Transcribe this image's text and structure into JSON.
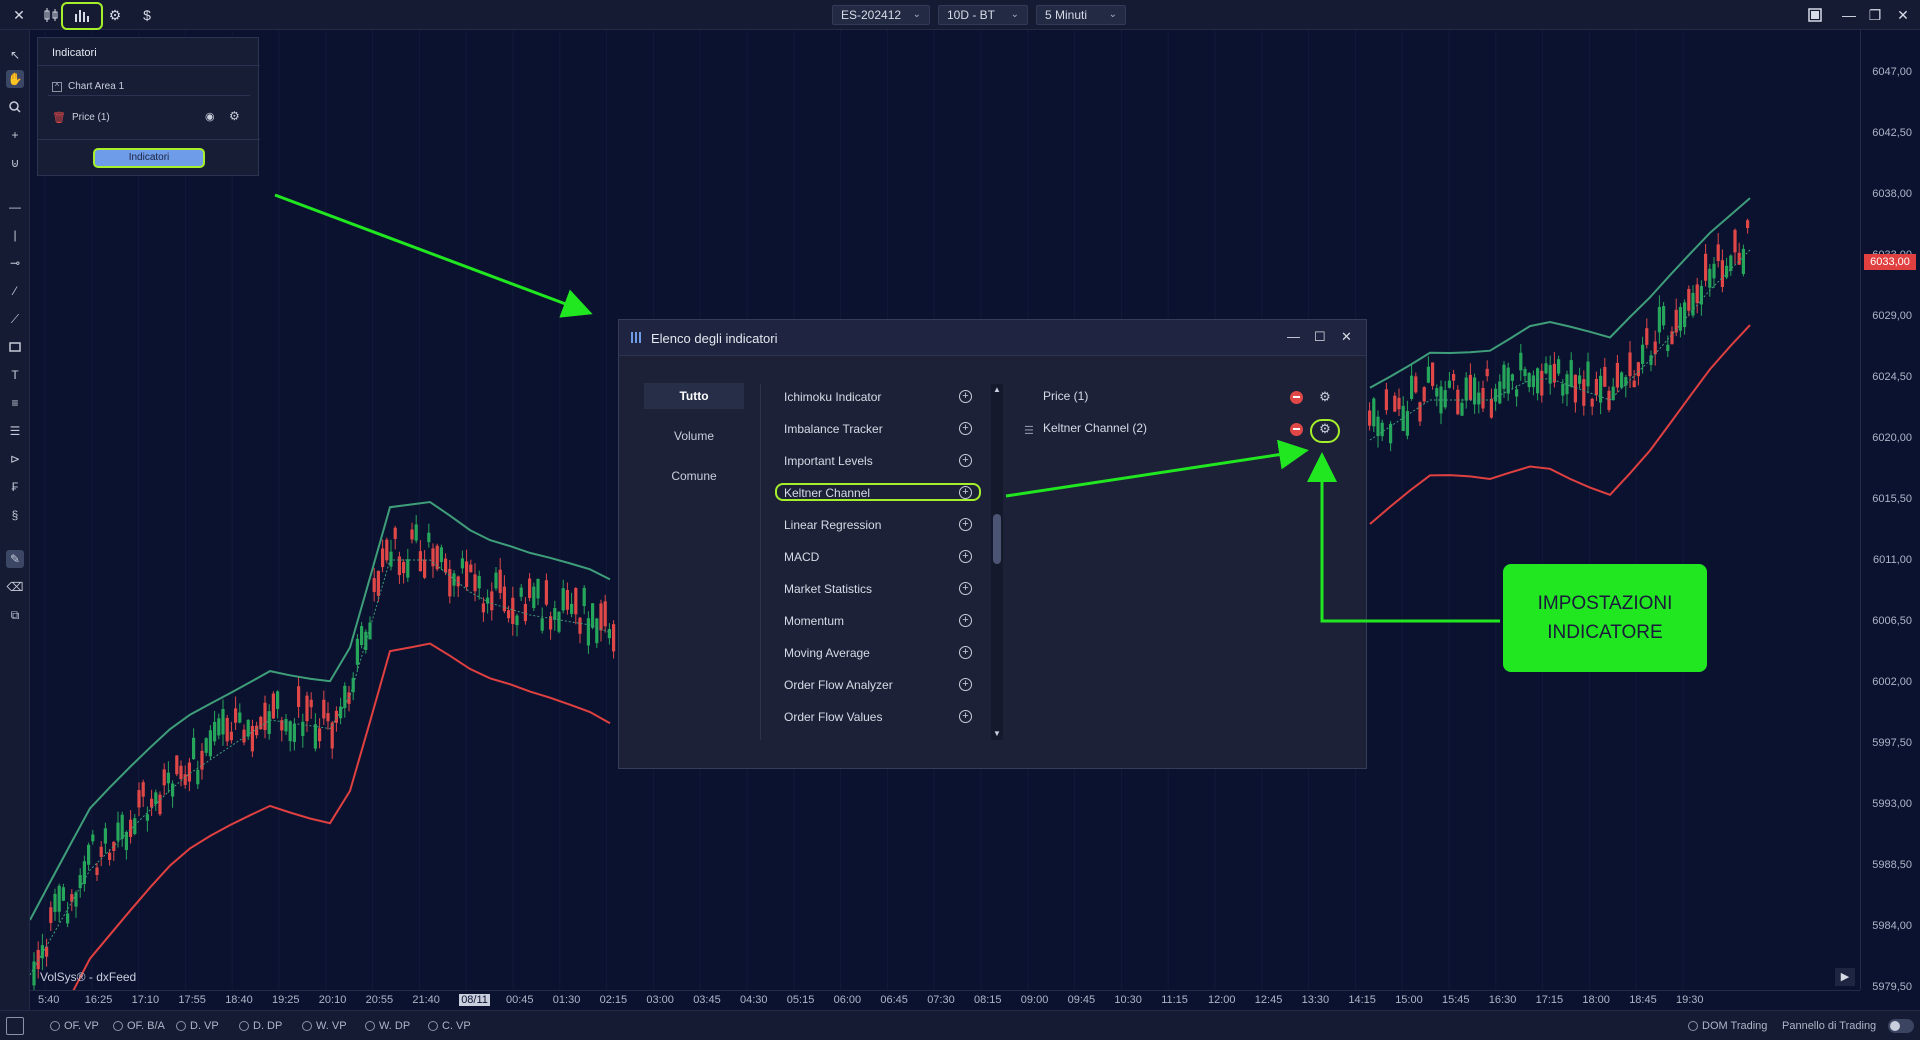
{
  "topbar": {
    "close_icon": "close-icon",
    "selects": [
      {
        "label": "ES-202412"
      },
      {
        "label": "10D - BT"
      },
      {
        "label": "5 Minuti"
      }
    ],
    "currency_label": "$"
  },
  "indicator_panel": {
    "title": "Indicatori",
    "chart_area": "Chart Area 1",
    "price_label": "Price (1)",
    "button_label": "Indicatori"
  },
  "dialog": {
    "title": "Elenco degli indicatori",
    "categories": [
      "Tutto",
      "Volume",
      "Comune"
    ],
    "list": [
      "Ichimoku Indicator",
      "Imbalance Tracker",
      "Important Levels",
      "Keltner Channel",
      "Linear Regression",
      "MACD",
      "Market Statistics",
      "Momentum",
      "Moving Average",
      "Order Flow Analyzer",
      "Order Flow Values"
    ],
    "selected": [
      "Price (1)",
      "Keltner Channel (2)"
    ]
  },
  "callout": {
    "line1": "IMPOSTAZIONI",
    "line2": "INDICATORE"
  },
  "yaxis": {
    "labels": [
      "6047,00",
      "6042,50",
      "6038,00",
      "6033,00",
      "6029,00",
      "6024,50",
      "6020,00",
      "6015,50",
      "6011,00",
      "6006,50",
      "6002,00",
      "5997,50",
      "5993,00",
      "5988,50",
      "5984,00",
      "5979,50"
    ],
    "current_price": "6033,00"
  },
  "xaxis": {
    "labels": [
      "5:40",
      "16:25",
      "17:10",
      "17:55",
      "18:40",
      "19:25",
      "20:10",
      "20:55",
      "21:40",
      "08/11",
      "00:45",
      "01:30",
      "02:15",
      "03:00",
      "03:45",
      "04:30",
      "05:15",
      "06:00",
      "06:45",
      "07:30",
      "08:15",
      "09:00",
      "09:45",
      "10:30",
      "11:15",
      "12:00",
      "12:45",
      "13:30",
      "14:15",
      "15:00",
      "15:45",
      "16:30",
      "17:15",
      "18:00",
      "18:45",
      "19:30"
    ]
  },
  "watermark": "VolSys® - dxFeed",
  "bottombar": {
    "options": [
      "OF. VP",
      "OF. B/A",
      "D. VP",
      "D. DP",
      "W. VP",
      "W. DP",
      "C. VP"
    ],
    "dom_trading": "DOM Trading",
    "panel_trading": "Pannello di Trading"
  },
  "colors": {
    "background": "#0b1230",
    "upper_band": "#3f9e7a",
    "lower_band": "#e0403f",
    "bull_candle": "#26a65b",
    "bear_candle": "#e04848",
    "highlight": "#a5f02b",
    "callout": "#21e721"
  }
}
